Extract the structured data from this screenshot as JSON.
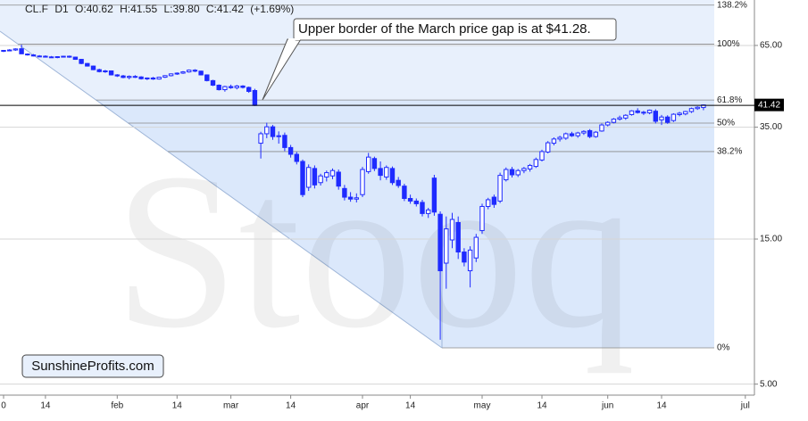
{
  "chart_data": {
    "type": "candlestick",
    "header": {
      "symbol": "CL.F",
      "timeframe": "D1",
      "ohlc": [
        "O:40.62",
        "H:41.55",
        "L:39.80",
        "C:41.42"
      ],
      "change": "(+1.69%)"
    },
    "annotation": "Upper border of the March price gap is at $41.28.",
    "watermark": "Stooq",
    "brand": "SunshineProfits.com",
    "color": "#1f2bff",
    "log_scale": true,
    "grid": true,
    "ylim": [
      4.6,
      91.7
    ],
    "yticks": [
      {
        "value": 65,
        "label": "65.00"
      },
      {
        "value": 35,
        "label": "35.00"
      },
      {
        "value": 15,
        "label": "15.00"
      },
      {
        "value": 5,
        "label": "5.00"
      }
    ],
    "fib_levels": [
      {
        "value": 88.2,
        "label": "138.2%"
      },
      {
        "value": 65.6,
        "label": "100%"
      },
      {
        "value": 43.0,
        "label": "61.8%"
      },
      {
        "value": 36.1,
        "label": "50%"
      },
      {
        "value": 29.1,
        "label": "38.2%"
      },
      {
        "value": 6.58,
        "label": "0%"
      }
    ],
    "gap_level": 41.28,
    "last_price": {
      "value": 41.42,
      "label": "41.42"
    },
    "categories": [
      "0",
      null,
      null,
      null,
      null,
      null,
      null,
      "14",
      null,
      null,
      null,
      null,
      null,
      null,
      null,
      null,
      null,
      null,
      null,
      "feb",
      null,
      null,
      null,
      null,
      null,
      null,
      null,
      null,
      null,
      "14",
      null,
      null,
      null,
      null,
      null,
      null,
      null,
      null,
      "mar",
      null,
      null,
      null,
      null,
      null,
      null,
      null,
      null,
      null,
      "14",
      null,
      null,
      null,
      null,
      null,
      null,
      null,
      null,
      null,
      null,
      null,
      "apr",
      null,
      null,
      null,
      null,
      null,
      null,
      null,
      "14",
      null,
      null,
      null,
      null,
      null,
      null,
      null,
      null,
      null,
      null,
      null,
      "may",
      null,
      null,
      null,
      null,
      null,
      null,
      null,
      null,
      null,
      "14",
      null,
      null,
      null,
      null,
      null,
      null,
      null,
      null,
      null,
      null,
      "jun",
      null,
      null,
      null,
      null,
      null,
      null,
      null,
      null,
      "14",
      null,
      null,
      null,
      null,
      null,
      null,
      null,
      null,
      null,
      null,
      null,
      null,
      null,
      "jul"
    ],
    "open": [
      62.2,
      62.6,
      62.8,
      63.4,
      60.9,
      60.5,
      60.0,
      59.9,
      59.6,
      59.4,
      59.7,
      59.9,
      59.5,
      58.5,
      56.7,
      55.6,
      54.1,
      53.3,
      53.6,
      52.0,
      51.6,
      51.0,
      51.4,
      51.2,
      50.5,
      50.8,
      50.4,
      51.1,
      51.7,
      52.4,
      52.7,
      53.2,
      53.9,
      53.5,
      52.0,
      49.8,
      48.1,
      46.5,
      47.6,
      47.2,
      47.8,
      47.3,
      46.2,
      31.0,
      33.3,
      35.1,
      32.6,
      32.9,
      30.0,
      28.5,
      27.0,
      22.2,
      25.6,
      23.0,
      24.0,
      24.2,
      24.9,
      22.0,
      20.6,
      20.3,
      21.0,
      25.0,
      27.6,
      25.6,
      24.0,
      25.6,
      23.4,
      22.4,
      20.4,
      20.0,
      19.8,
      18.2,
      23.8,
      18.1,
      12.5,
      14.9,
      17.0,
      13.6,
      11.8,
      13.0,
      16.0,
      19.2,
      20.6,
      20.0,
      23.5,
      25.4,
      24.4,
      25.2,
      25.5,
      26.0,
      27.3,
      29.0,
      31.0,
      32.0,
      32.2,
      33.3,
      32.8,
      33.5,
      34.1,
      32.6,
      34.0,
      35.6,
      36.3,
      37.2,
      37.5,
      38.5,
      39.6,
      39.0,
      39.0,
      39.5,
      37.0,
      37.8,
      36.8,
      38.5,
      38.7,
      39.4,
      40.3,
      40.62,
      null,
      null,
      null,
      null,
      null,
      null,
      null
    ],
    "high": [
      62.8,
      63.2,
      63.6,
      65.4,
      61.2,
      60.9,
      60.4,
      60.3,
      60.0,
      59.9,
      60.1,
      60.2,
      59.7,
      58.7,
      56.9,
      55.8,
      54.5,
      54.0,
      53.8,
      52.3,
      52.0,
      51.8,
      51.9,
      51.5,
      51.0,
      51.2,
      51.3,
      51.9,
      52.6,
      53.0,
      53.5,
      54.2,
      54.3,
      53.7,
      52.2,
      50.1,
      48.4,
      47.9,
      48.3,
      48.2,
      48.1,
      47.6,
      46.8,
      33.8,
      36.2,
      35.6,
      33.9,
      33.6,
      30.6,
      29.0,
      27.4,
      26.4,
      26.2,
      24.6,
      25.2,
      25.6,
      25.4,
      22.6,
      21.4,
      21.2,
      25.9,
      28.8,
      28.0,
      27.0,
      26.2,
      26.0,
      24.0,
      22.8,
      21.0,
      20.4,
      20.2,
      19.0,
      24.4,
      18.5,
      17.8,
      18.3,
      17.8,
      14.0,
      14.2,
      15.6,
      19.6,
      20.5,
      21.0,
      24.8,
      25.8,
      25.9,
      25.5,
      25.9,
      26.5,
      27.8,
      29.5,
      31.5,
      32.4,
      32.8,
      33.6,
      33.8,
      33.8,
      34.2,
      34.5,
      34.0,
      36.0,
      36.6,
      37.5,
      38.2,
      38.6,
      39.8,
      40.4,
      39.6,
      40.0,
      40.1,
      38.4,
      38.3,
      38.9,
      39.3,
      39.6,
      40.6,
      41.0,
      41.55,
      null,
      null,
      null,
      null,
      null,
      null,
      null
    ],
    "low": [
      61.8,
      62.2,
      62.4,
      60.9,
      60.2,
      59.8,
      59.6,
      59.3,
      59.2,
      59.0,
      59.3,
      59.2,
      58.3,
      56.4,
      55.4,
      53.9,
      53.0,
      52.8,
      51.8,
      51.2,
      50.7,
      50.3,
      50.8,
      50.2,
      50.0,
      50.1,
      50.2,
      50.8,
      51.4,
      52.0,
      52.4,
      52.9,
      53.1,
      51.8,
      49.5,
      47.8,
      46.2,
      45.8,
      46.8,
      46.6,
      46.9,
      45.4,
      41.1,
      27.6,
      32.2,
      31.8,
      30.9,
      29.2,
      27.8,
      26.4,
      20.6,
      21.6,
      22.0,
      22.5,
      23.2,
      23.6,
      21.8,
      20.1,
      19.9,
      19.8,
      20.6,
      24.6,
      25.1,
      23.4,
      23.5,
      22.6,
      22.1,
      20.0,
      19.6,
      19.2,
      17.8,
      17.6,
      17.9,
      7.0,
      10.3,
      14.0,
      12.9,
      12.2,
      10.4,
      12.6,
      15.6,
      18.8,
      19.0,
      19.7,
      23.2,
      23.9,
      24.0,
      24.7,
      25.0,
      25.7,
      27.0,
      28.7,
      30.5,
      31.4,
      31.8,
      32.5,
      32.3,
      33.0,
      32.2,
      32.3,
      33.8,
      35.2,
      36.0,
      36.8,
      37.0,
      38.2,
      38.8,
      38.4,
      38.6,
      36.0,
      35.6,
      35.9,
      36.4,
      38.0,
      38.3,
      39.0,
      39.9,
      39.8,
      null,
      null,
      null,
      null,
      null,
      null,
      null
    ],
    "close": [
      62.6,
      62.8,
      63.3,
      61.0,
      60.5,
      60.0,
      59.9,
      59.6,
      59.4,
      59.7,
      59.9,
      59.5,
      58.5,
      56.7,
      55.6,
      54.1,
      53.3,
      53.6,
      52.0,
      51.6,
      51.0,
      51.4,
      51.2,
      50.5,
      50.8,
      50.4,
      51.1,
      51.7,
      52.4,
      52.7,
      53.2,
      53.9,
      53.5,
      52.0,
      49.8,
      48.1,
      46.5,
      47.6,
      47.2,
      47.8,
      47.3,
      45.9,
      41.28,
      33.3,
      35.1,
      32.6,
      32.8,
      30.0,
      28.5,
      27.0,
      21.0,
      25.8,
      22.6,
      24.2,
      24.8,
      25.2,
      22.4,
      20.6,
      20.3,
      20.5,
      25.4,
      27.9,
      25.6,
      24.3,
      25.8,
      23.0,
      22.5,
      20.4,
      20.0,
      19.6,
      18.2,
      18.7,
      18.4,
      11.8,
      16.2,
      17.4,
      13.6,
      12.6,
      13.8,
      15.2,
      19.2,
      20.2,
      19.5,
      24.3,
      25.4,
      24.4,
      25.2,
      25.6,
      26.2,
      27.4,
      29.1,
      31.1,
      32.0,
      32.4,
      33.3,
      32.8,
      33.5,
      33.9,
      32.6,
      33.7,
      35.6,
      36.3,
      37.2,
      37.6,
      38.3,
      39.6,
      39.1,
      39.2,
      39.8,
      36.6,
      37.8,
      36.3,
      38.6,
      38.9,
      39.4,
      40.3,
      40.7,
      41.42,
      null,
      null,
      null,
      null,
      null,
      null,
      null
    ]
  }
}
